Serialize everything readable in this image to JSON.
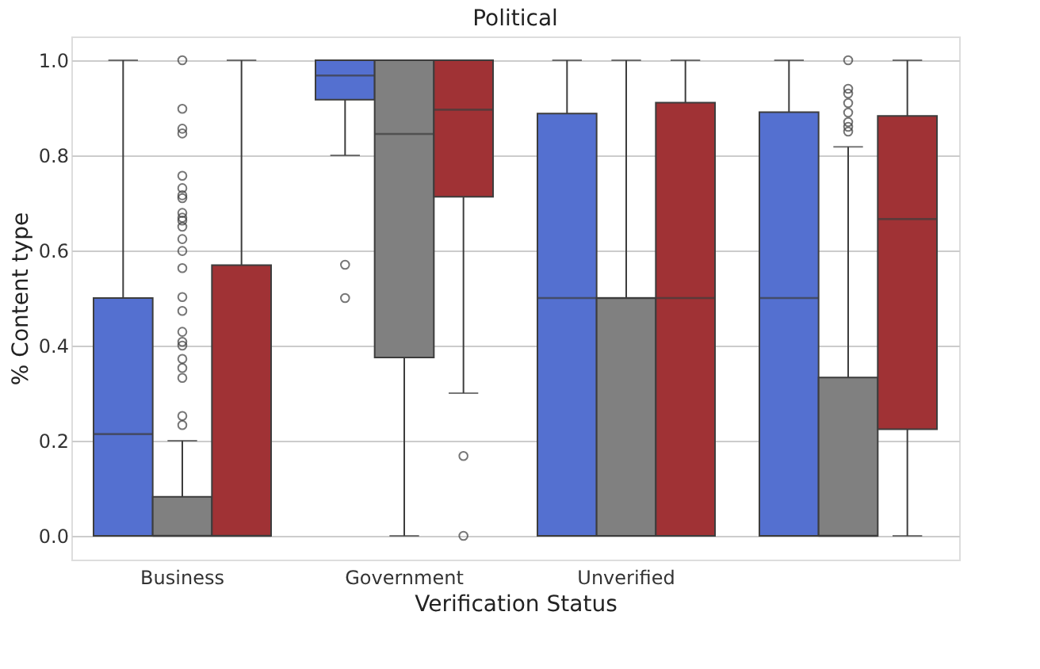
{
  "chart_data": {
    "type": "box",
    "title": "Political",
    "xlabel": "Verification Status",
    "ylabel": "% Content type",
    "categories": [
      "Business",
      "Government",
      "Unverified",
      null
    ],
    "ylim": [
      -0.05,
      1.05
    ],
    "yticks": [
      {
        "value": 0,
        "label": "0.0"
      },
      {
        "value": 0.2,
        "label": "0.2"
      },
      {
        "value": 0.4,
        "label": "0.4"
      },
      {
        "value": 0.6,
        "label": "0.6"
      },
      {
        "value": 0.8,
        "label": "0.8"
      },
      {
        "value": 1,
        "label": "1.0"
      }
    ],
    "grid": "y",
    "series": [
      {
        "color": "#5470d0",
        "boxes": [
          {
            "low": 0,
            "q1": 0,
            "median": 0.214,
            "q3": 0.5,
            "high": 1
          },
          {
            "low": 0.8,
            "q1": 0.917,
            "median": 0.968,
            "q3": 1,
            "high": 1,
            "outliers": [
              0.57,
              0.5
            ]
          },
          {
            "low": 0,
            "q1": 0,
            "median": 0.5,
            "q3": 0.888,
            "high": 1
          },
          {
            "low": 0,
            "q1": 0,
            "median": 0.5,
            "q3": 0.891,
            "high": 1
          }
        ]
      },
      {
        "color": "#808080",
        "boxes": [
          {
            "low": 0,
            "q1": 0,
            "median": 0,
            "q3": 0.082,
            "high": 0.2,
            "outliers": [
              0.233,
              0.252,
              0.332,
              0.353,
              0.372,
              0.4,
              0.408,
              0.429,
              0.473,
              0.502,
              0.563,
              0.599,
              0.624,
              0.65,
              0.663,
              0.669,
              0.679,
              0.71,
              0.716,
              0.731,
              0.757,
              0.846,
              0.856,
              0.898,
              1.0
            ]
          },
          {
            "low": 0,
            "q1": 0.375,
            "median": 0.845,
            "q3": 1,
            "high": 1
          },
          {
            "low": 0,
            "q1": 0,
            "median": 0.5,
            "q3": 0.5,
            "high": 1
          },
          {
            "low": 0,
            "q1": 0,
            "median": 0,
            "q3": 0.333,
            "high": 0.818,
            "outliers": [
              0.85,
              0.86,
              0.87,
              0.89,
              0.91,
              0.93,
              0.94,
              1.0
            ]
          }
        ]
      },
      {
        "color": "#a03235",
        "boxes": [
          {
            "low": 0,
            "q1": 0,
            "median": 0,
            "q3": 0.569,
            "high": 1
          },
          {
            "low": 0.3,
            "q1": 0.713,
            "median": 0.896,
            "q3": 1,
            "high": 1,
            "outliers": [
              0.168,
              0
            ]
          },
          {
            "low": 0,
            "q1": 0,
            "median": 0.5,
            "q3": 0.911,
            "high": 1
          },
          {
            "low": 0,
            "q1": 0.224,
            "median": 0.666,
            "q3": 0.883,
            "high": 1
          }
        ]
      }
    ]
  }
}
